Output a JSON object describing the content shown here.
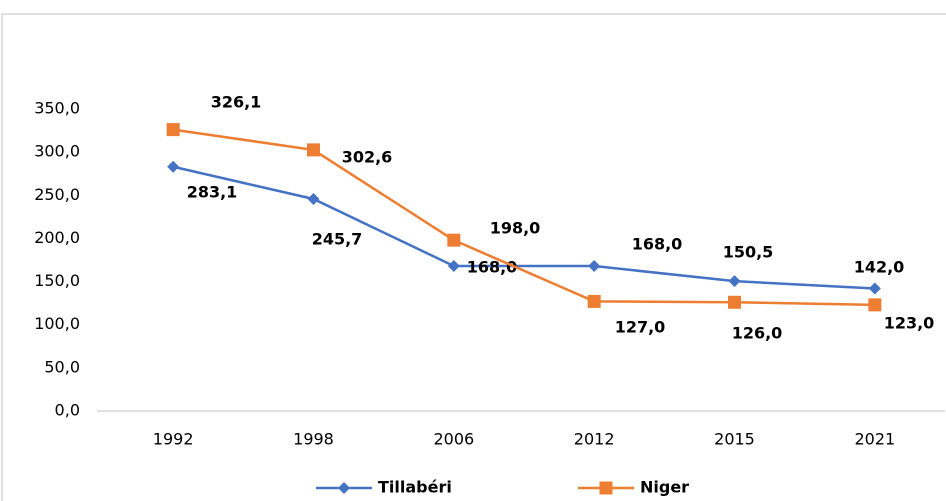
{
  "chart_data": {
    "type": "line",
    "categories": [
      "1992",
      "1998",
      "2006",
      "2012",
      "2015",
      "2021"
    ],
    "series": [
      {
        "name": "Tillabéri",
        "color": "#4472c4",
        "marker": "diamond",
        "values": [
          283.1,
          245.7,
          168.0,
          168.0,
          150.5,
          142.0
        ],
        "value_labels": [
          "283,1",
          "245,7",
          "168,0",
          "168,0",
          "150,5",
          "142,0"
        ]
      },
      {
        "name": "Niger",
        "color": "#ed7d31",
        "marker": "square",
        "values": [
          326.1,
          302.6,
          198.0,
          127.0,
          126.0,
          123.0
        ],
        "value_labels": [
          "326,1",
          "302,6",
          "198,0",
          "127,0",
          "126,0",
          "123,0"
        ]
      }
    ],
    "ylim": [
      0,
      350
    ],
    "yticks": [
      {
        "value": 0,
        "label": "0,0"
      },
      {
        "value": 50,
        "label": "50,0"
      },
      {
        "value": 100,
        "label": "100,0"
      },
      {
        "value": 150,
        "label": "150,0"
      },
      {
        "value": 200,
        "label": "200,0"
      },
      {
        "value": 250,
        "label": "250,0"
      },
      {
        "value": 300,
        "label": "300,0"
      },
      {
        "value": 350,
        "label": "350,0"
      }
    ],
    "grid": false,
    "legend": "bottom"
  }
}
